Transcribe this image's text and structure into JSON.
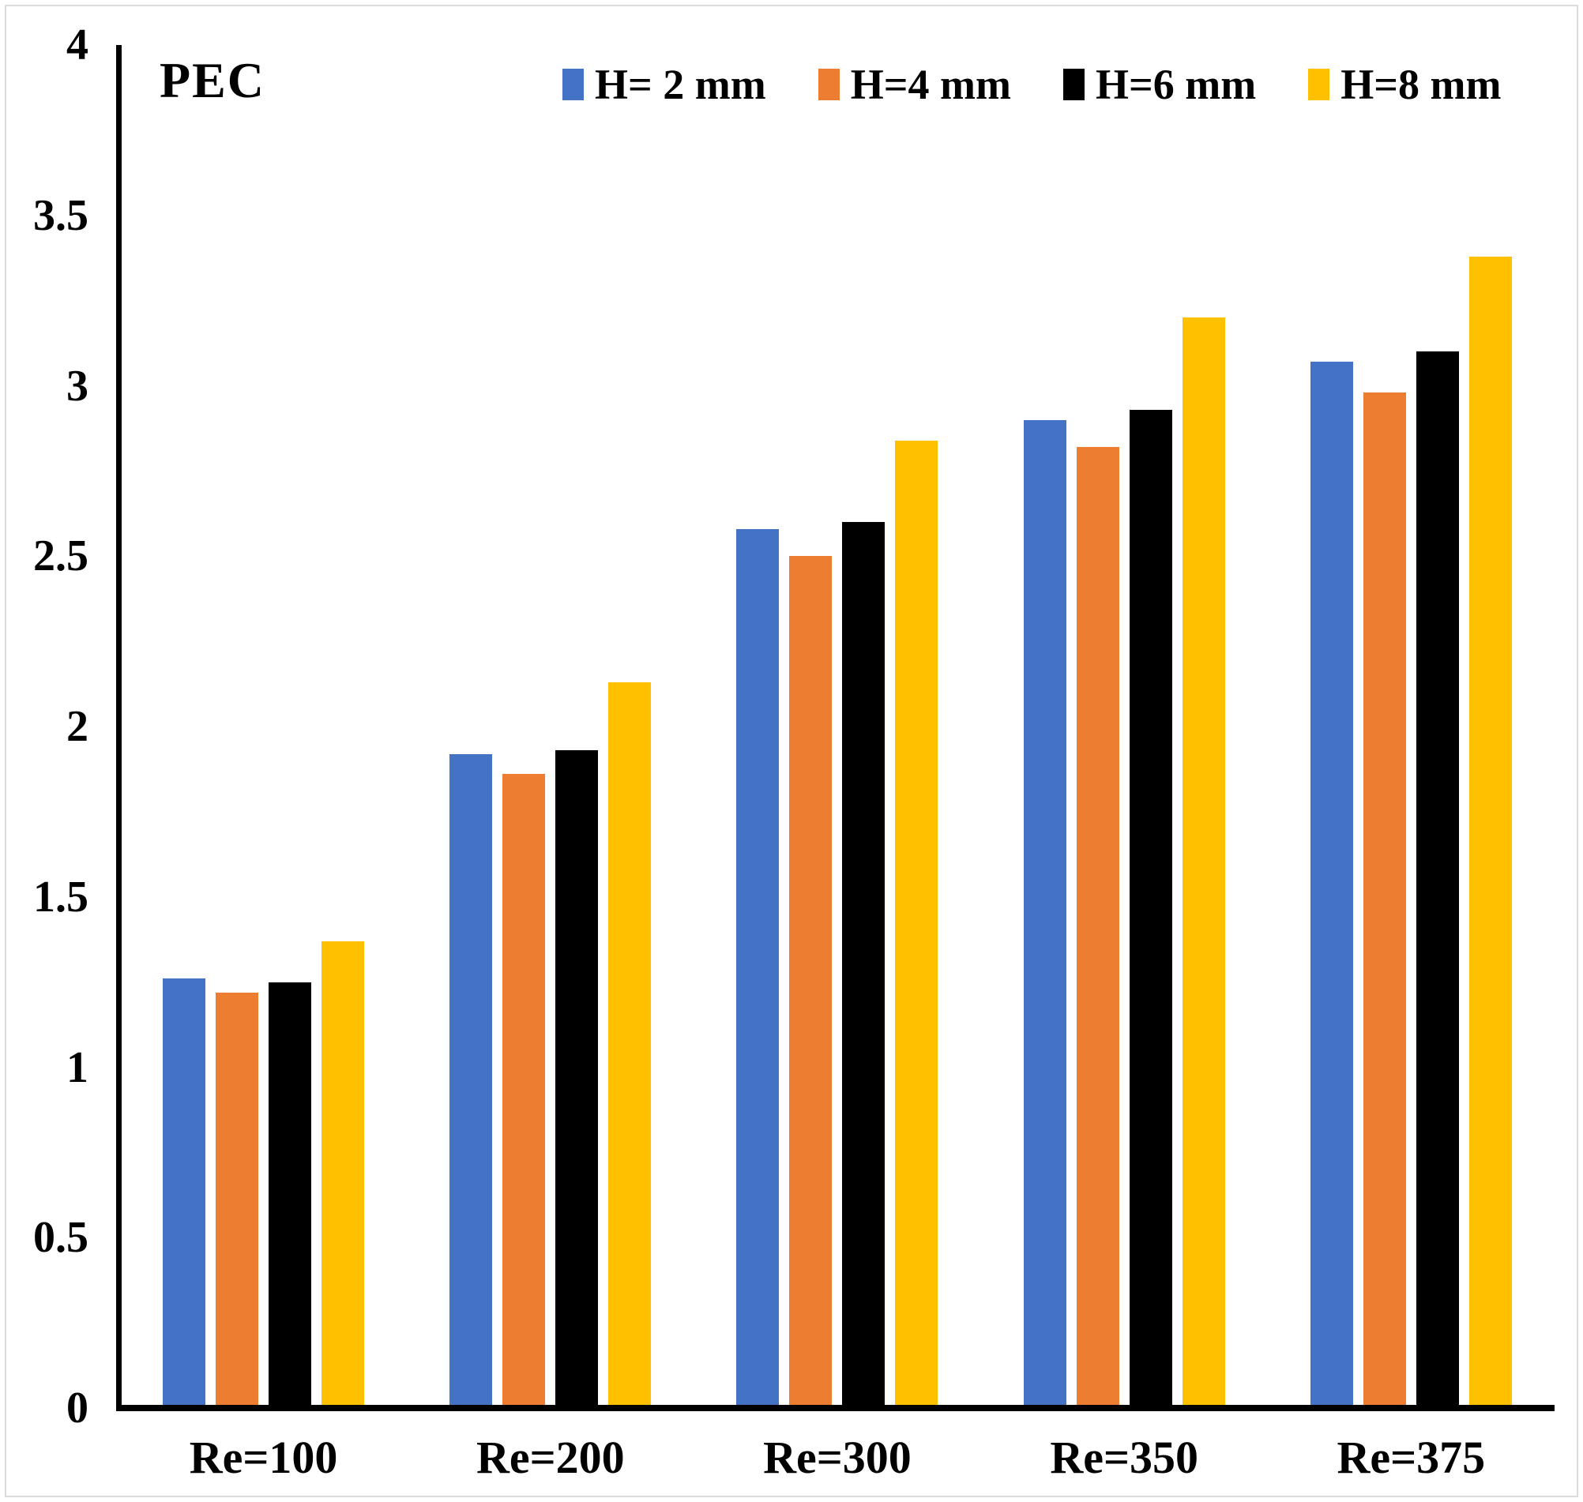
{
  "figure": {
    "border_color": "#dcdcdc",
    "background_color": "#ffffff",
    "text_color": "#000000"
  },
  "chart_data": {
    "type": "bar",
    "title": "",
    "ylabel": "PEC",
    "xlabel": "",
    "categories": [
      "Re=100",
      "Re=200",
      "Re=300",
      "Re=350",
      "Re=375"
    ],
    "series": [
      {
        "name": "H= 2 mm",
        "color": "#4472C4",
        "values": [
          1.26,
          1.92,
          2.58,
          2.9,
          3.07
        ]
      },
      {
        "name": "H=4 mm",
        "color": "#ED7D31",
        "values": [
          1.22,
          1.86,
          2.5,
          2.82,
          2.98
        ]
      },
      {
        "name": "H=6 mm",
        "color": "#000000",
        "values": [
          1.25,
          1.93,
          2.6,
          2.93,
          3.1
        ]
      },
      {
        "name": "H=8 mm",
        "color": "#FFC000",
        "values": [
          1.37,
          2.13,
          2.84,
          3.2,
          3.38
        ]
      }
    ],
    "ylim": [
      0,
      4
    ],
    "ytick_step": 0.5,
    "ytick_labels": [
      "0",
      "0.5",
      "1",
      "1.5",
      "2",
      "2.5",
      "3",
      "3.5",
      "4"
    ],
    "grid": false,
    "legend_position": "top"
  }
}
